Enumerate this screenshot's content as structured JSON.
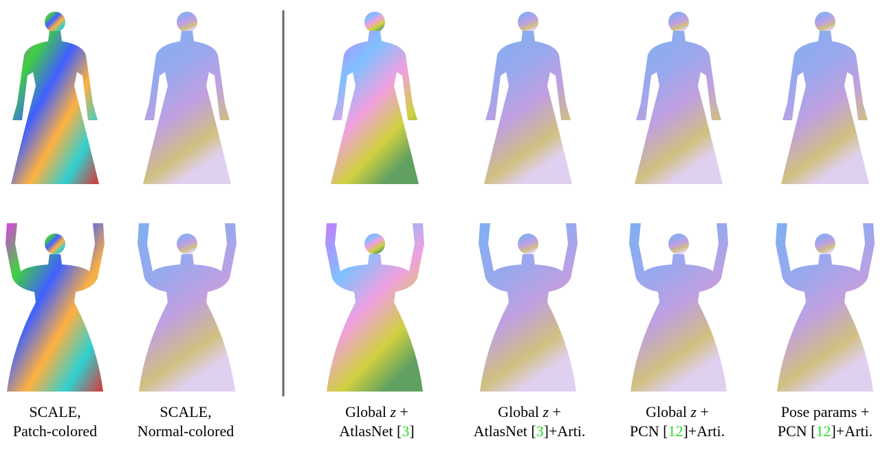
{
  "columns": [
    {
      "line1": [
        {
          "text": "SCALE,"
        }
      ],
      "line2": [
        {
          "text": "Patch-colored"
        }
      ]
    },
    {
      "line1": [
        {
          "text": "SCALE,"
        }
      ],
      "line2": [
        {
          "text": "Normal-colored"
        }
      ]
    },
    {
      "line1": [
        {
          "text": "Global "
        },
        {
          "text": "z",
          "italic": true
        },
        {
          "text": " +"
        }
      ],
      "line2": [
        {
          "text": "AtlasNet ["
        },
        {
          "text": "3",
          "color": "#22dd22"
        },
        {
          "text": "]"
        }
      ]
    },
    {
      "line1": [
        {
          "text": "Global "
        },
        {
          "text": "z",
          "italic": true
        },
        {
          "text": " +"
        }
      ],
      "line2": [
        {
          "text": "AtlasNet ["
        },
        {
          "text": "3",
          "color": "#22dd22"
        },
        {
          "text": "]+Arti."
        }
      ]
    },
    {
      "line1": [
        {
          "text": "Global "
        },
        {
          "text": "z",
          "italic": true
        },
        {
          "text": " +"
        }
      ],
      "line2": [
        {
          "text": "PCN ["
        },
        {
          "text": "12",
          "color": "#22dd22"
        },
        {
          "text": "]+Arti."
        }
      ]
    },
    {
      "line1": [
        {
          "text": "Pose params +"
        }
      ],
      "line2": [
        {
          "text": "PCN ["
        },
        {
          "text": "12",
          "color": "#22dd22"
        },
        {
          "text": "]+Arti."
        }
      ]
    }
  ]
}
